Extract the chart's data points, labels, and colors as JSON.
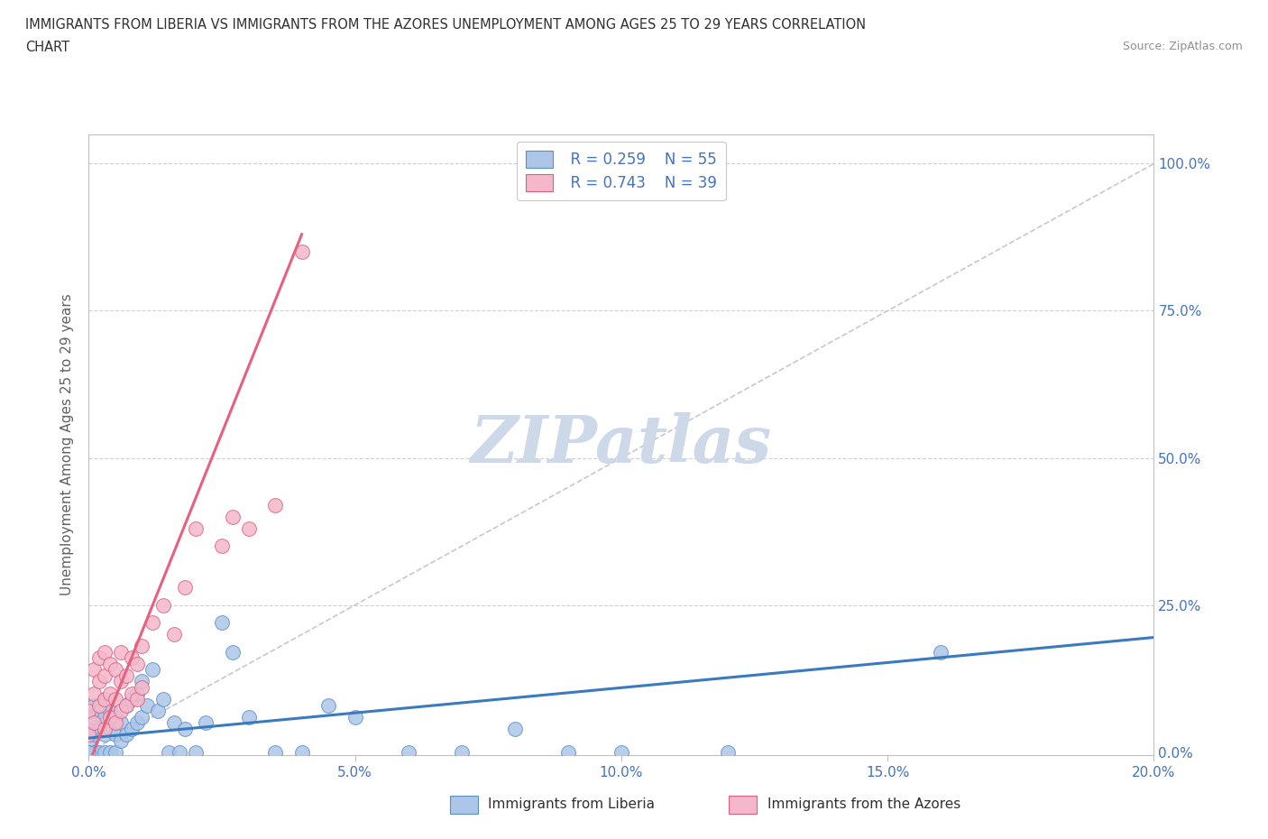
{
  "title_line1": "IMMIGRANTS FROM LIBERIA VS IMMIGRANTS FROM THE AZORES UNEMPLOYMENT AMONG AGES 25 TO 29 YEARS CORRELATION",
  "title_line2": "CHART",
  "source": "Source: ZipAtlas.com",
  "ylabel": "Unemployment Among Ages 25 to 29 years",
  "xlim": [
    0.0,
    0.2
  ],
  "ylim": [
    -0.005,
    1.05
  ],
  "xticks": [
    0.0,
    0.05,
    0.1,
    0.15,
    0.2
  ],
  "xtick_labels": [
    "0.0%",
    "5.0%",
    "10.0%",
    "15.0%",
    "20.0%"
  ],
  "ytick_labels_right": [
    "0.0%",
    "25.0%",
    "50.0%",
    "75.0%",
    "100.0%"
  ],
  "yticks_right": [
    0.0,
    0.25,
    0.5,
    0.75,
    1.0
  ],
  "liberia_color": "#adc6e8",
  "azores_color": "#f5b8cb",
  "liberia_edge": "#5a8fc4",
  "azores_edge": "#d9607e",
  "trend_liberia_color": "#3a7abf",
  "trend_azores_color": "#e8607e",
  "diag_color": "#c8c8c8",
  "legend_R_liberia": "R = 0.259",
  "legend_N_liberia": "N = 55",
  "legend_R_azores": "R = 0.743",
  "legend_N_azores": "N = 39",
  "watermark": "ZIPatlas",
  "watermark_color": "#cdd8e8",
  "liberia_x": [
    0.0,
    0.0,
    0.0,
    0.001,
    0.001,
    0.001,
    0.001,
    0.002,
    0.002,
    0.002,
    0.003,
    0.003,
    0.003,
    0.003,
    0.004,
    0.004,
    0.004,
    0.005,
    0.005,
    0.005,
    0.006,
    0.006,
    0.007,
    0.007,
    0.008,
    0.008,
    0.009,
    0.009,
    0.01,
    0.01,
    0.011,
    0.012,
    0.013,
    0.014,
    0.015,
    0.016,
    0.017,
    0.018,
    0.02,
    0.022,
    0.025,
    0.027,
    0.03,
    0.035,
    0.04,
    0.045,
    0.05,
    0.06,
    0.07,
    0.08,
    0.09,
    0.1,
    0.12,
    0.16,
    0.0
  ],
  "liberia_y": [
    0.0,
    0.02,
    0.05,
    0.0,
    0.03,
    0.06,
    0.08,
    0.0,
    0.04,
    0.07,
    0.0,
    0.03,
    0.06,
    0.09,
    0.0,
    0.04,
    0.07,
    0.0,
    0.03,
    0.06,
    0.02,
    0.05,
    0.03,
    0.08,
    0.04,
    0.09,
    0.05,
    0.1,
    0.06,
    0.12,
    0.08,
    0.14,
    0.07,
    0.09,
    0.0,
    0.05,
    0.0,
    0.04,
    0.0,
    0.05,
    0.22,
    0.17,
    0.06,
    0.0,
    0.0,
    0.08,
    0.06,
    0.0,
    0.0,
    0.04,
    0.0,
    0.0,
    0.0,
    0.17,
    0.0
  ],
  "azores_x": [
    0.0,
    0.0,
    0.001,
    0.001,
    0.001,
    0.002,
    0.002,
    0.002,
    0.003,
    0.003,
    0.003,
    0.003,
    0.004,
    0.004,
    0.004,
    0.005,
    0.005,
    0.005,
    0.006,
    0.006,
    0.006,
    0.007,
    0.007,
    0.008,
    0.008,
    0.009,
    0.009,
    0.01,
    0.01,
    0.012,
    0.014,
    0.016,
    0.018,
    0.02,
    0.025,
    0.027,
    0.03,
    0.035,
    0.04
  ],
  "azores_y": [
    0.03,
    0.07,
    0.05,
    0.1,
    0.14,
    0.08,
    0.12,
    0.16,
    0.04,
    0.09,
    0.13,
    0.17,
    0.06,
    0.1,
    0.15,
    0.05,
    0.09,
    0.14,
    0.07,
    0.12,
    0.17,
    0.08,
    0.13,
    0.1,
    0.16,
    0.09,
    0.15,
    0.11,
    0.18,
    0.22,
    0.25,
    0.2,
    0.28,
    0.38,
    0.35,
    0.4,
    0.38,
    0.42,
    0.85
  ],
  "trend_liberia_x0": 0.0,
  "trend_liberia_x1": 0.2,
  "trend_liberia_y0": 0.024,
  "trend_liberia_y1": 0.195,
  "trend_azores_x0": 0.0,
  "trend_azores_x1": 0.04,
  "trend_azores_y0": -0.02,
  "trend_azores_y1": 0.88
}
